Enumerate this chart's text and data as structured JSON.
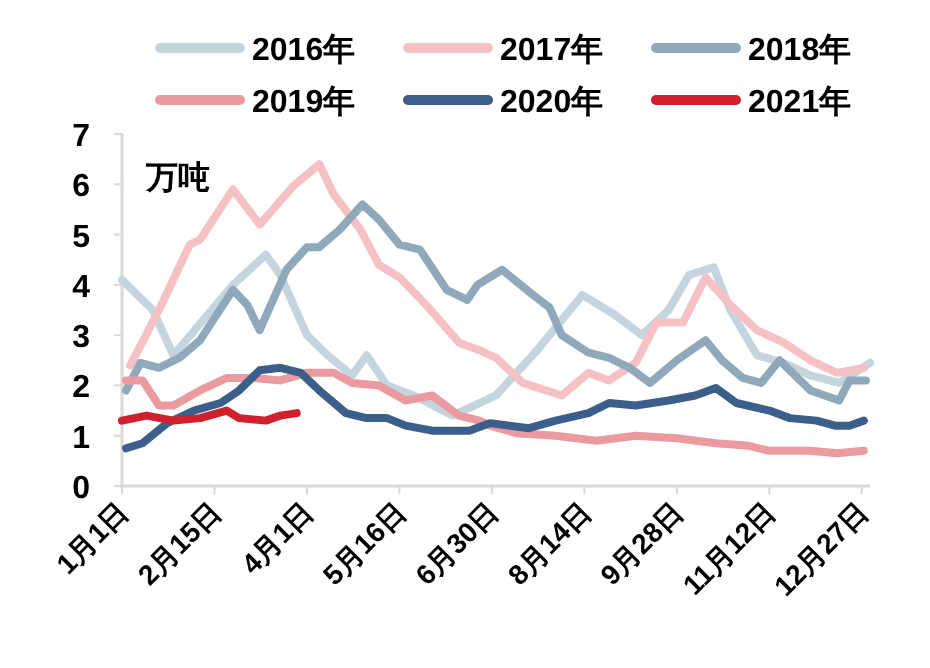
{
  "chart_data": {
    "type": "line",
    "ylabel": "万吨",
    "legend": "top",
    "grid": false,
    "line_style": "solid",
    "marker": "none",
    "xlim": [
      "--01-01",
      "--12-31"
    ],
    "ylim": [
      0,
      7
    ],
    "yticks": [
      0,
      1,
      2,
      3,
      4,
      5,
      6,
      7
    ],
    "xticks": [
      {
        "value": "--01-01",
        "label": "1月1日"
      },
      {
        "value": "--02-15",
        "label": "2月15日"
      },
      {
        "value": "--04-01",
        "label": "4月1日"
      },
      {
        "value": "--05-16",
        "label": "5月16日"
      },
      {
        "value": "--06-30",
        "label": "6月30日"
      },
      {
        "value": "--08-14",
        "label": "8月14日"
      },
      {
        "value": "--09-28",
        "label": "9月28日"
      },
      {
        "value": "--11-12",
        "label": "11月12日"
      },
      {
        "value": "--12-27",
        "label": "12月27日"
      }
    ],
    "series": [
      {
        "name": "2016年",
        "color": "#c5d5e0",
        "x": [
          "--01-01",
          "--01-16",
          "--01-26",
          "--02-24",
          "--03-12",
          "--03-19",
          "--04-01",
          "--04-11",
          "--04-23",
          "--04-30",
          "--05-10",
          "--05-23",
          "--06-11",
          "--07-02",
          "--07-22",
          "--08-13",
          "--08-29",
          "--09-11",
          "--09-24",
          "--10-04",
          "--10-16",
          "--10-24",
          "--11-06",
          "--11-19",
          "--12-02",
          "--12-16",
          "--12-31"
        ],
        "values": [
          4.1,
          3.5,
          2.6,
          4.0,
          4.6,
          4.2,
          3.0,
          2.6,
          2.2,
          2.6,
          2.0,
          1.8,
          1.4,
          1.8,
          2.7,
          3.8,
          3.4,
          3.0,
          3.5,
          4.2,
          4.35,
          3.5,
          2.6,
          2.45,
          2.2,
          2.05,
          2.45
        ]
      },
      {
        "name": "2017年",
        "color": "#f6c1c4",
        "x": [
          "--01-05",
          "--01-19",
          "--02-03",
          "--02-08",
          "--02-24",
          "--03-09",
          "--03-25",
          "--04-07",
          "--04-14",
          "--04-27",
          "--05-06",
          "--05-16",
          "--05-29",
          "--06-14",
          "--06-24",
          "--07-02",
          "--07-15",
          "--08-03",
          "--08-16",
          "--08-26",
          "--09-08",
          "--09-18",
          "--10-01",
          "--10-12",
          "--10-24",
          "--11-06",
          "--11-19",
          "--12-02",
          "--12-15",
          "--12-28"
        ],
        "values": [
          2.4,
          3.5,
          4.8,
          4.9,
          5.9,
          5.2,
          5.95,
          6.4,
          5.8,
          5.1,
          4.4,
          4.15,
          3.6,
          2.85,
          2.7,
          2.55,
          2.05,
          1.8,
          2.25,
          2.1,
          2.45,
          3.25,
          3.25,
          4.15,
          3.6,
          3.1,
          2.85,
          2.5,
          2.25,
          2.35
        ]
      },
      {
        "name": "2018年",
        "color": "#8fa9bb",
        "x": [
          "--01-03",
          "--01-10",
          "--01-19",
          "--01-29",
          "--02-08",
          "--02-24",
          "--03-03",
          "--03-09",
          "--03-22",
          "--04-01",
          "--04-07",
          "--04-17",
          "--04-28",
          "--05-06",
          "--05-16",
          "--05-26",
          "--06-08",
          "--06-18",
          "--06-23",
          "--07-05",
          "--07-20",
          "--07-28",
          "--08-03",
          "--08-16",
          "--08-26",
          "--09-05",
          "--09-15",
          "--09-28",
          "--10-12",
          "--10-20",
          "--10-30",
          "--11-08",
          "--11-17",
          "--12-02",
          "--12-16",
          "--12-21",
          "--12-29"
        ],
        "values": [
          1.9,
          2.45,
          2.35,
          2.55,
          2.9,
          3.9,
          3.6,
          3.1,
          4.3,
          4.75,
          4.75,
          5.1,
          5.6,
          5.3,
          4.8,
          4.7,
          3.9,
          3.7,
          4.0,
          4.3,
          3.8,
          3.55,
          3.0,
          2.65,
          2.55,
          2.35,
          2.05,
          2.5,
          2.9,
          2.5,
          2.15,
          2.05,
          2.5,
          1.9,
          1.7,
          2.1,
          2.1
        ]
      },
      {
        "name": "2019年",
        "color": "#eb9aa0",
        "x": [
          "--01-03",
          "--01-11",
          "--01-19",
          "--01-26",
          "--02-08",
          "--02-21",
          "--03-06",
          "--03-19",
          "--04-01",
          "--04-14",
          "--04-23",
          "--05-06",
          "--05-19",
          "--06-01",
          "--06-14",
          "--06-24",
          "--06-29",
          "--07-12",
          "--07-31",
          "--08-20",
          "--09-08",
          "--09-28",
          "--10-17",
          "--11-02",
          "--11-12",
          "--12-02",
          "--12-15",
          "--12-28"
        ],
        "values": [
          2.1,
          2.1,
          1.6,
          1.6,
          1.9,
          2.15,
          2.15,
          2.1,
          2.25,
          2.25,
          2.05,
          2.0,
          1.7,
          1.8,
          1.4,
          1.3,
          1.2,
          1.05,
          1.0,
          0.9,
          1.0,
          0.95,
          0.85,
          0.8,
          0.7,
          0.7,
          0.65,
          0.7
        ]
      },
      {
        "name": "2020年",
        "color": "#3b5f8a",
        "x": [
          "--01-03",
          "--01-11",
          "--01-23",
          "--02-05",
          "--02-18",
          "--02-27",
          "--03-09",
          "--03-19",
          "--03-29",
          "--04-07",
          "--04-20",
          "--04-30",
          "--05-10",
          "--05-19",
          "--06-01",
          "--06-19",
          "--06-29",
          "--07-18",
          "--07-31",
          "--08-16",
          "--08-26",
          "--09-08",
          "--09-24",
          "--10-07",
          "--10-17",
          "--10-27",
          "--11-12",
          "--11-22",
          "--12-05",
          "--12-14",
          "--12-21",
          "--12-28"
        ],
        "values": [
          0.75,
          0.85,
          1.25,
          1.5,
          1.65,
          1.9,
          2.3,
          2.35,
          2.25,
          1.9,
          1.45,
          1.35,
          1.35,
          1.2,
          1.1,
          1.1,
          1.25,
          1.15,
          1.3,
          1.45,
          1.65,
          1.6,
          1.7,
          1.8,
          1.95,
          1.65,
          1.5,
          1.35,
          1.3,
          1.2,
          1.2,
          1.3
        ]
      },
      {
        "name": "2021年",
        "color": "#d0202e",
        "x": [
          "--01-01",
          "--01-13",
          "--01-26",
          "--02-08",
          "--02-21",
          "--02-27",
          "--03-12",
          "--03-19",
          "--03-27"
        ],
        "values": [
          1.3,
          1.4,
          1.3,
          1.35,
          1.5,
          1.35,
          1.3,
          1.4,
          1.45
        ]
      }
    ]
  }
}
